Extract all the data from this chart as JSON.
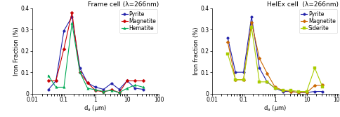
{
  "left_title": "Frame cell (λ=266nm)",
  "right_title": "HelEx cell  (λ=266nm)",
  "left_ylabel": "Iron Fraction (%)",
  "right_ylabel": "Iron fraction (%)",
  "ylim": [
    0,
    0.4
  ],
  "yticks": [
    0.0,
    0.1,
    0.2,
    0.3,
    0.4
  ],
  "left_series": {
    "Pyrite": {
      "color": "#2222aa",
      "marker": "o",
      "x": [
        0.032,
        0.056,
        0.1,
        0.18,
        0.32,
        0.56,
        1.0,
        1.8,
        3.2,
        5.6,
        10,
        18,
        32
      ],
      "y": [
        0.018,
        0.06,
        0.295,
        0.36,
        0.12,
        0.05,
        0.03,
        0.02,
        0.048,
        0.02,
        0.06,
        0.025,
        0.02
      ]
    },
    "Magnetite": {
      "color": "#cc0000",
      "marker": "D",
      "x": [
        0.032,
        0.056,
        0.1,
        0.18,
        0.32,
        0.56,
        1.0,
        1.8,
        3.2,
        5.6,
        10,
        18,
        32
      ],
      "y": [
        0.06,
        0.06,
        0.21,
        0.38,
        0.1,
        0.05,
        0.015,
        0.008,
        0.018,
        0.005,
        0.06,
        0.06,
        0.06
      ]
    },
    "Hematite": {
      "color": "#00aa55",
      "marker": "^",
      "x": [
        0.032,
        0.056,
        0.1,
        0.18,
        0.32,
        0.56,
        1.0,
        1.8,
        3.2,
        5.6,
        10,
        18,
        32
      ],
      "y": [
        0.085,
        0.03,
        0.03,
        0.33,
        0.1,
        0.025,
        0.018,
        0.01,
        0.015,
        0.005,
        0.025,
        0.04,
        0.03
      ]
    }
  },
  "right_series": {
    "Pyrite": {
      "color": "#2222aa",
      "marker": "o",
      "x": [
        0.032,
        0.056,
        0.1,
        0.18,
        0.32,
        0.56,
        1.0,
        1.8,
        3.2,
        5.6,
        10,
        18,
        32
      ],
      "y": [
        0.26,
        0.1,
        0.1,
        0.36,
        0.12,
        0.055,
        0.025,
        0.01,
        0.01,
        0.005,
        0.005,
        0.01,
        0.01
      ]
    },
    "Magnetite": {
      "color": "#cc6600",
      "marker": "D",
      "x": [
        0.032,
        0.056,
        0.1,
        0.18,
        0.32,
        0.56,
        1.0,
        1.8,
        3.2,
        5.6,
        10,
        18,
        32
      ],
      "y": [
        0.24,
        0.065,
        0.065,
        0.335,
        0.165,
        0.095,
        0.03,
        0.015,
        0.01,
        0.005,
        0.005,
        0.038,
        0.04
      ]
    },
    "Siderite": {
      "color": "#aacc00",
      "marker": "s",
      "x": [
        0.032,
        0.056,
        0.1,
        0.18,
        0.32,
        0.56,
        1.0,
        1.8,
        3.2,
        5.6,
        10,
        18,
        32
      ],
      "y": [
        0.185,
        0.065,
        0.065,
        0.31,
        0.055,
        0.055,
        0.025,
        0.015,
        0.015,
        0.01,
        0.01,
        0.12,
        0.03
      ]
    }
  },
  "title_fontsize": 6.5,
  "label_fontsize": 6.0,
  "tick_fontsize": 5.5,
  "legend_fontsize": 5.5,
  "linewidth": 0.8,
  "markersize": 2.5
}
